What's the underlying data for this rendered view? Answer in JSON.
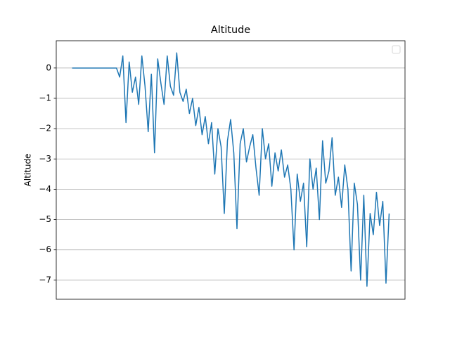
{
  "chart_data": {
    "type": "line",
    "title": "Altitude",
    "y_label": "Altitude",
    "x": [
      0,
      1,
      2,
      3,
      4,
      5,
      6,
      7,
      8,
      9,
      10,
      11,
      12,
      13,
      14,
      15,
      16,
      17,
      18,
      19,
      20,
      21,
      22,
      23,
      24,
      25,
      26,
      27,
      28,
      29,
      30,
      31,
      32,
      33,
      34,
      35,
      36,
      37,
      38,
      39,
      40,
      41,
      42,
      43,
      44,
      45,
      46,
      47,
      48,
      49,
      50,
      51,
      52,
      53,
      54,
      55,
      56,
      57,
      58,
      59,
      60,
      61,
      62,
      63,
      64,
      65,
      66,
      67,
      68,
      69,
      70,
      71,
      72,
      73,
      74,
      75,
      76,
      77,
      78,
      79,
      80,
      81,
      82,
      83,
      84,
      85,
      86,
      87,
      88,
      89,
      90,
      91,
      92,
      93,
      94,
      95,
      96,
      97,
      98,
      99,
      100
    ],
    "series": [
      {
        "color": "#1f77b4",
        "values": [
          0,
          0,
          0,
          0,
          0,
          0,
          0,
          0,
          0,
          0,
          0,
          0,
          0,
          0,
          0,
          -0.3,
          0.4,
          -1.8,
          0.2,
          -0.8,
          -0.3,
          -1.2,
          0.4,
          -0.6,
          -2.1,
          -0.2,
          -2.8,
          0.3,
          -0.5,
          -1.2,
          0.4,
          -0.6,
          -0.9,
          0.5,
          -0.8,
          -1.1,
          -0.7,
          -1.5,
          -1.0,
          -1.9,
          -1.3,
          -2.2,
          -1.6,
          -2.5,
          -1.8,
          -3.5,
          -2.0,
          -2.6,
          -4.8,
          -2.4,
          -1.7,
          -2.8,
          -5.3,
          -2.5,
          -2.0,
          -3.1,
          -2.6,
          -2.2,
          -3.3,
          -4.2,
          -2.0,
          -3.0,
          -2.5,
          -3.9,
          -2.8,
          -3.4,
          -2.7,
          -3.6,
          -3.2,
          -4.0,
          -6.0,
          -3.5,
          -4.4,
          -3.8,
          -5.9,
          -3.0,
          -4.0,
          -3.3,
          -5.0,
          -2.4,
          -3.8,
          -3.4,
          -2.3,
          -4.2,
          -3.6,
          -4.6,
          -3.2,
          -4.0,
          -6.7,
          -3.8,
          -4.5,
          -7.0,
          -4.2,
          -7.2,
          -4.8,
          -5.5,
          -4.1,
          -5.2,
          -4.4,
          -7.1,
          -4.8
        ]
      }
    ],
    "xlim": [
      -5,
      105
    ],
    "ylim": [
      -7.63,
      0.9
    ],
    "yticks": [
      0,
      {
        "value": -1,
        "label": "−1"
      },
      {
        "value": -2,
        "label": "−2"
      },
      {
        "value": -3,
        "label": "−3"
      },
      {
        "value": -4,
        "label": "−4"
      },
      {
        "value": -5,
        "label": "−5"
      },
      {
        "value": -6,
        "label": "−6"
      },
      {
        "value": -7,
        "label": "−7"
      }
    ],
    "grid": true,
    "legend": "upper right"
  }
}
